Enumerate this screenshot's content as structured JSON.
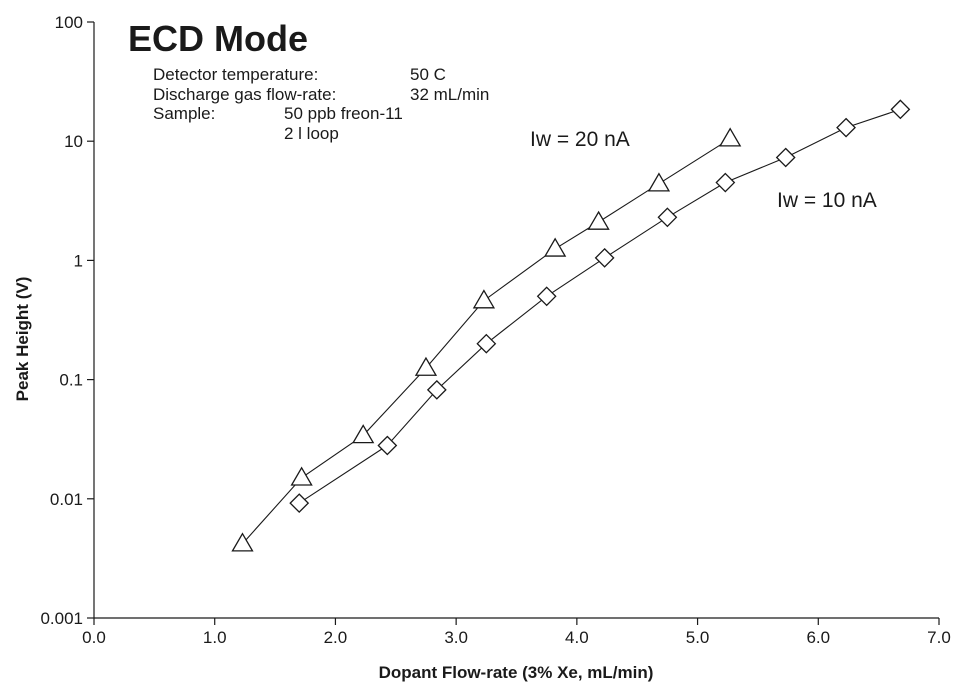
{
  "chart_data": {
    "type": "line",
    "title": "ECD Mode",
    "xlabel": "Dopant Flow-rate (3% Xe, mL/min)",
    "ylabel": "Peak Height  (V)",
    "x_scale": "linear",
    "y_scale": "log",
    "xlim": [
      0.0,
      7.0
    ],
    "ylim": [
      0.001,
      100
    ],
    "x_ticks": [
      "0.0",
      "1.0",
      "2.0",
      "3.0",
      "4.0",
      "5.0",
      "6.0",
      "7.0"
    ],
    "y_ticks": [
      "0.001",
      "0.01",
      "0.1",
      "1",
      "10",
      "100"
    ],
    "grid": false,
    "info": [
      {
        "label": "Detector temperature:",
        "value": "50 C"
      },
      {
        "label": "Discharge gas flow-rate:",
        "value": "32 mL/min"
      },
      {
        "label": "Sample:",
        "value": "50 ppb freon-11"
      },
      {
        "label": "",
        "value": "2  l loop"
      }
    ],
    "series": [
      {
        "name": "Iw = 20 nA",
        "marker": "triangle",
        "points": [
          {
            "x": 1.23,
            "y": 0.0042
          },
          {
            "x": 1.72,
            "y": 0.015
          },
          {
            "x": 2.23,
            "y": 0.034
          },
          {
            "x": 2.75,
            "y": 0.125
          },
          {
            "x": 3.23,
            "y": 0.46
          },
          {
            "x": 3.82,
            "y": 1.25
          },
          {
            "x": 4.18,
            "y": 2.1
          },
          {
            "x": 4.68,
            "y": 4.4
          },
          {
            "x": 5.27,
            "y": 10.5
          }
        ]
      },
      {
        "name": "Iw = 10 nA",
        "marker": "diamond",
        "points": [
          {
            "x": 1.7,
            "y": 0.0092
          },
          {
            "x": 2.43,
            "y": 0.028
          },
          {
            "x": 2.84,
            "y": 0.082
          },
          {
            "x": 3.25,
            "y": 0.2
          },
          {
            "x": 3.75,
            "y": 0.5
          },
          {
            "x": 4.23,
            "y": 1.05
          },
          {
            "x": 4.75,
            "y": 2.3
          },
          {
            "x": 5.23,
            "y": 4.5
          },
          {
            "x": 5.73,
            "y": 7.3
          },
          {
            "x": 6.23,
            "y": 13
          },
          {
            "x": 6.68,
            "y": 18.5
          }
        ]
      }
    ]
  }
}
